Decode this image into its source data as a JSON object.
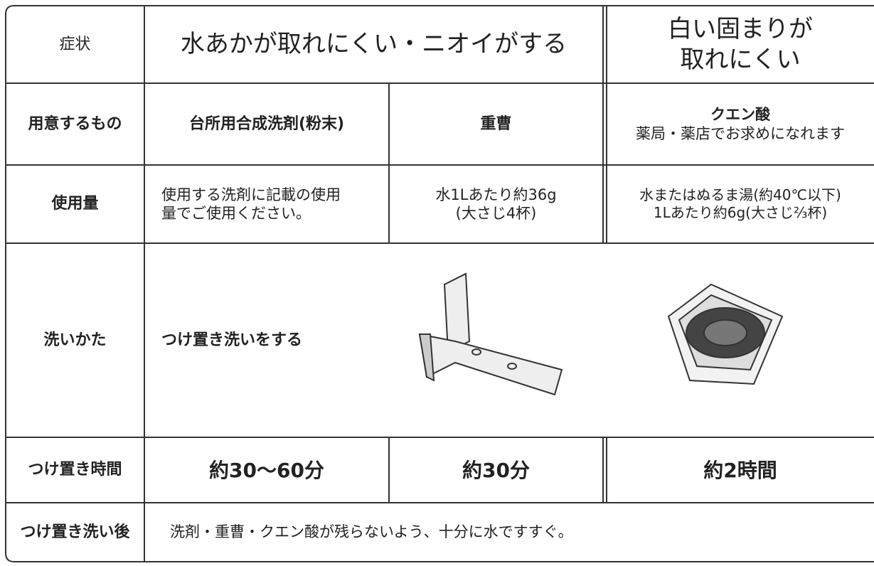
{
  "table": {
    "rows": [
      [
        [
          "症状"
        ],
        [
          "水あかが取れにくい・ニオイがする"
        ],
        [
          "白い固まりが",
          "取れにくい"
        ]
      ],
      [
        [
          "用意するもの"
        ],
        [
          "台所用合成洗剤(粉末)"
        ],
        [
          "重曹"
        ],
        [
          "クエン酸",
          "薬局・薬店でお求めになれます"
        ]
      ],
      [
        [
          "使用量"
        ],
        [
          "使用する洗剤に記載の使用",
          "量でご使用ください。"
        ],
        [
          "水1Lあたり約36g",
          "(大さじ4杯)"
        ],
        [
          "水またはぬるま湯(約40℃以下)",
          "1Lあたり約6g(大さじ⅔杯)"
        ]
      ],
      [
        [
          "洗いかた"
        ],
        [
          "つけ置き洗いをする"
        ]
      ],
      [
        [
          "つけ置き時間"
        ],
        [
          "約30〜60分"
        ],
        [
          "約30分"
        ],
        [
          "約2時間"
        ]
      ],
      [
        [
          "つけ置き洗い後"
        ],
        [
          "洗剤・重曹・クエン酸が残らないよう、十分に水ですすぐ。"
        ]
      ]
    ]
  }
}
